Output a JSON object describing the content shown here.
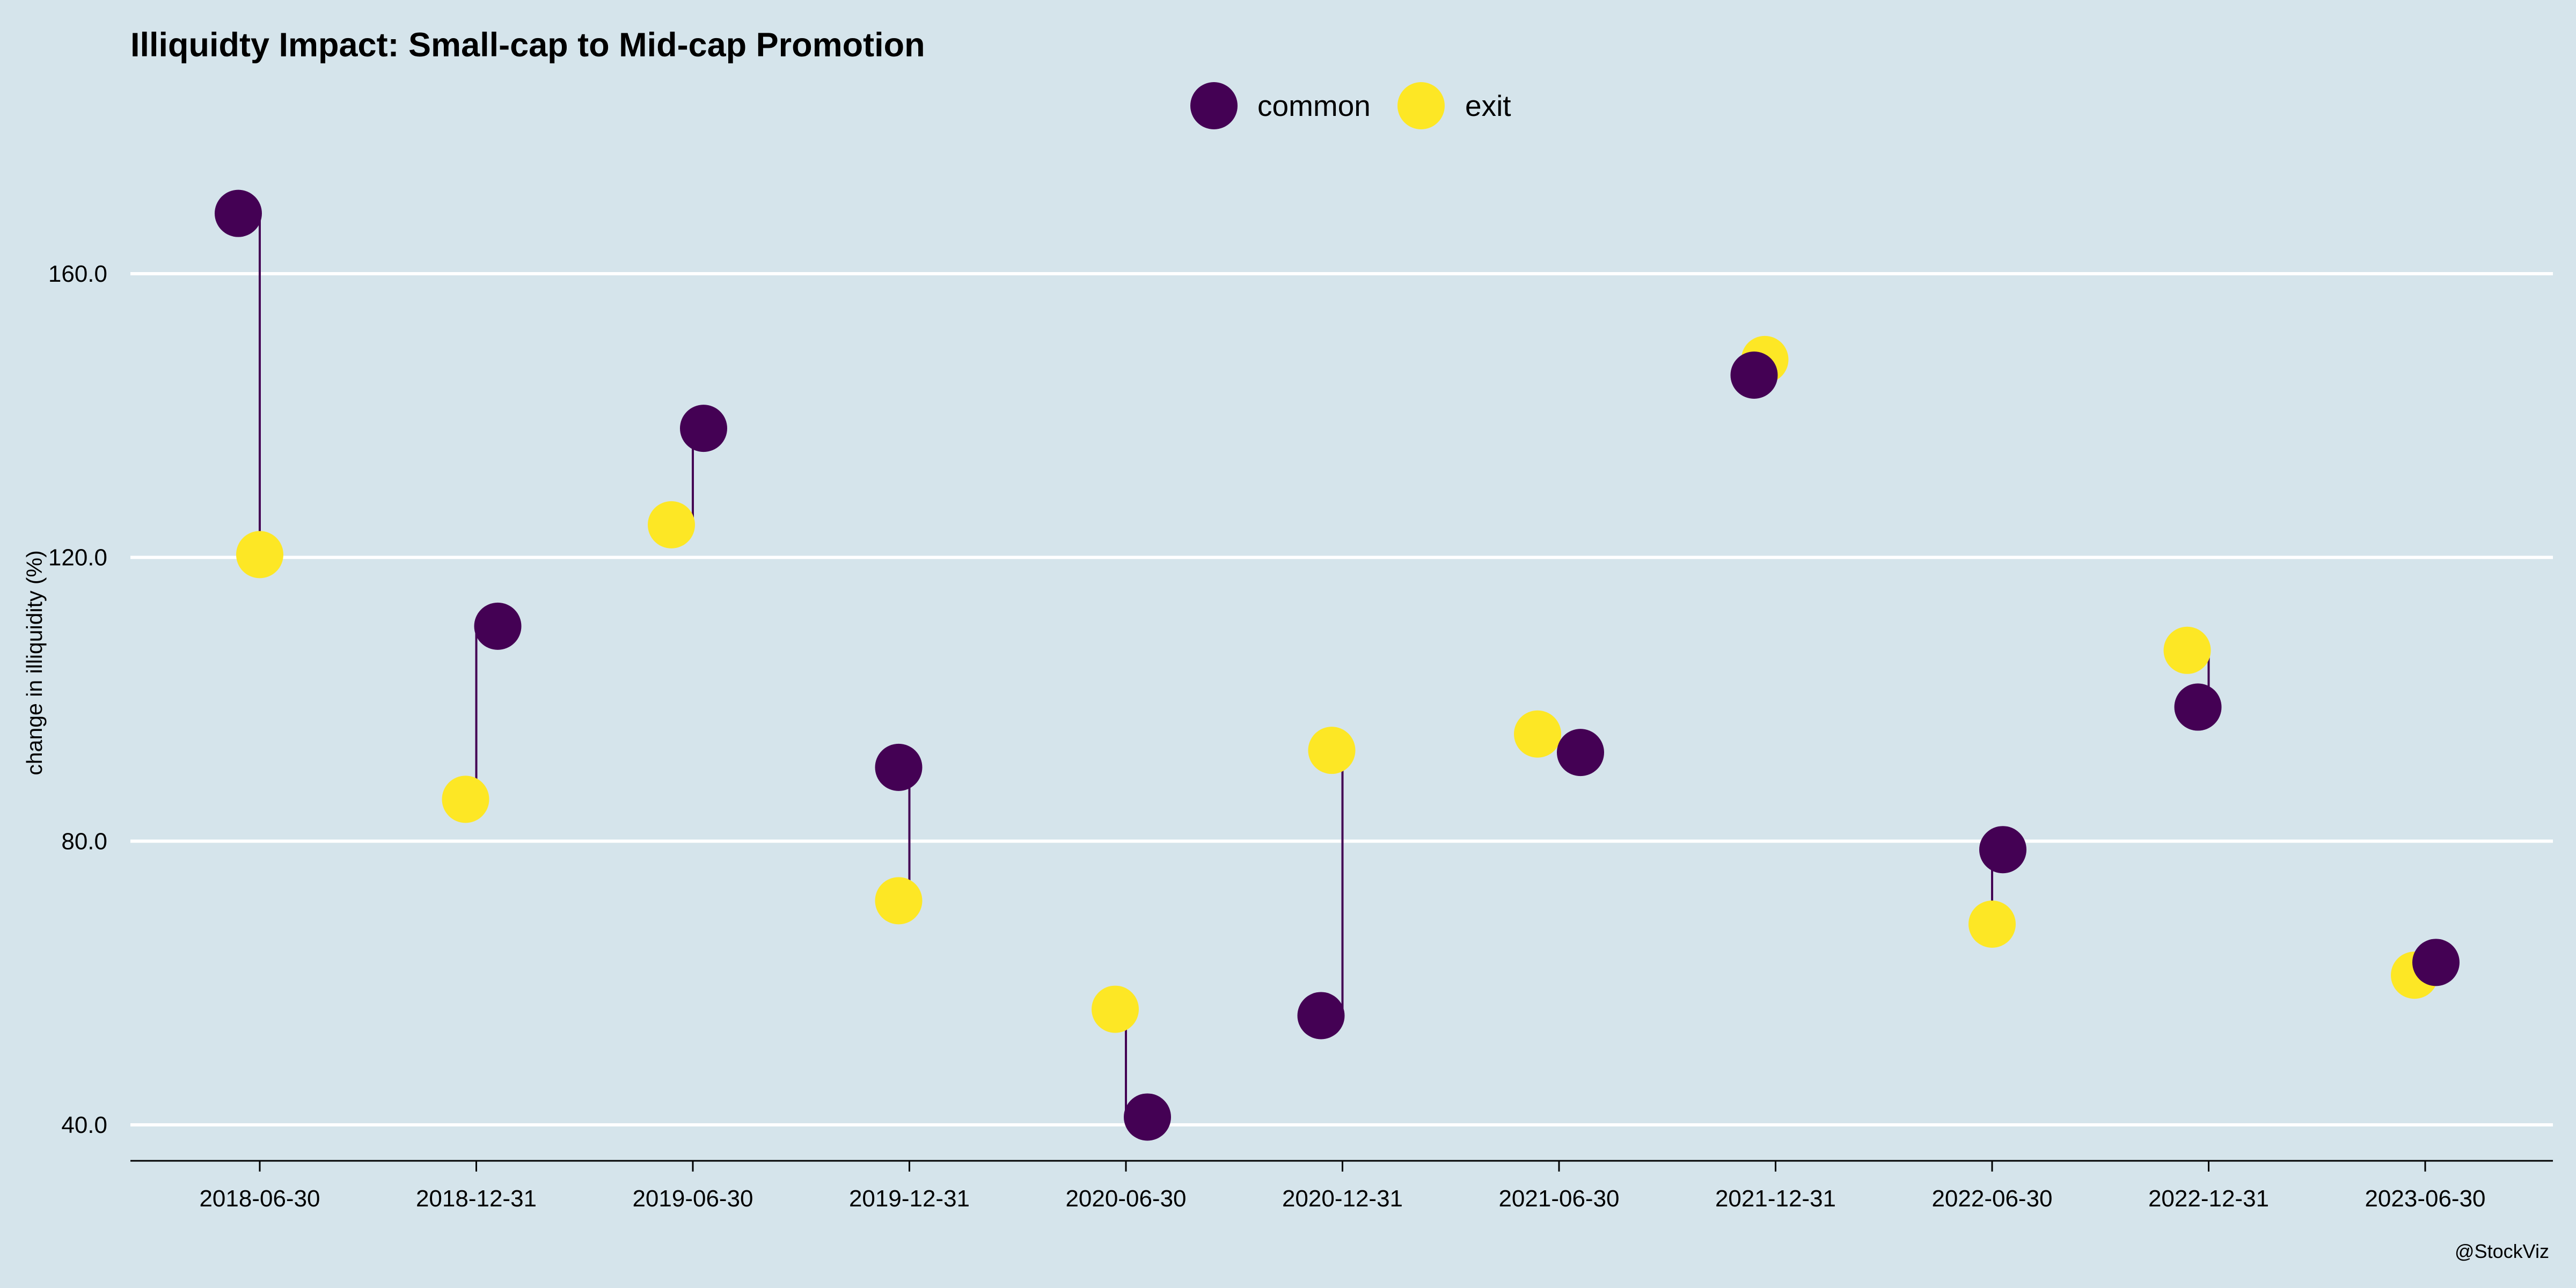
{
  "chart_data": {
    "type": "scatter",
    "title": "Illiquidty Impact: Small-cap to Mid-cap Promotion",
    "xlabel": "",
    "ylabel": "change in illiquidity (%)",
    "ylim": [
      35,
      182
    ],
    "y_ticks": [
      "40.0",
      "80.0",
      "120.0",
      "160.0"
    ],
    "grid": true,
    "legend_position": "top",
    "categories": [
      "2018-06-30",
      "2018-12-31",
      "2019-06-30",
      "2019-12-31",
      "2020-06-30",
      "2020-12-31",
      "2021-06-30",
      "2021-12-31",
      "2022-06-30",
      "2022-12-31",
      "2023-06-30"
    ],
    "series": [
      {
        "name": "common",
        "color": "#440154",
        "values": [
          168.5,
          110.3,
          138.2,
          90.4,
          41.1,
          55.4,
          92.5,
          145.7,
          78.8,
          98.9,
          62.9
        ]
      },
      {
        "name": "exit",
        "color": "#fde725",
        "values": [
          120.4,
          85.9,
          124.6,
          71.6,
          56.3,
          92.8,
          95.1,
          147.9,
          68.3,
          106.9,
          61.1
        ]
      }
    ],
    "caption": "@StockViz"
  }
}
